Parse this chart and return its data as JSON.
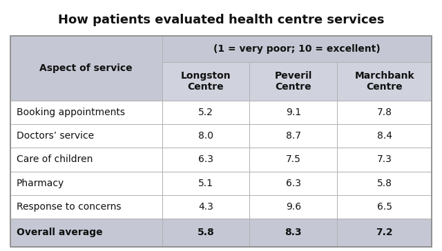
{
  "title": "How patients evaluated health centre services",
  "subtitle": "(1 = very poor; 10 = excellent)",
  "col_headers": [
    "Longston\nCentre",
    "Peveril\nCentre",
    "Marchbank\nCentre"
  ],
  "aspect_header": "Aspect of service",
  "rows": [
    [
      "Booking appointments",
      "5.2",
      "9.1",
      "7.8"
    ],
    [
      "Doctors’ service",
      "8.0",
      "8.7",
      "8.4"
    ],
    [
      "Care of children",
      "6.3",
      "7.5",
      "7.3"
    ],
    [
      "Pharmacy",
      "5.1",
      "6.3",
      "5.8"
    ],
    [
      "Response to concerns",
      "4.3",
      "9.6",
      "6.5"
    ],
    [
      "Overall average",
      "5.8",
      "8.3",
      "7.2"
    ]
  ],
  "header_bg": "#c5c8d4",
  "subheader_bg": "#d0d3de",
  "white": "#ffffff",
  "line_color": "#b0b0b0",
  "title_fontsize": 13,
  "header_fontsize": 10,
  "body_fontsize": 10
}
